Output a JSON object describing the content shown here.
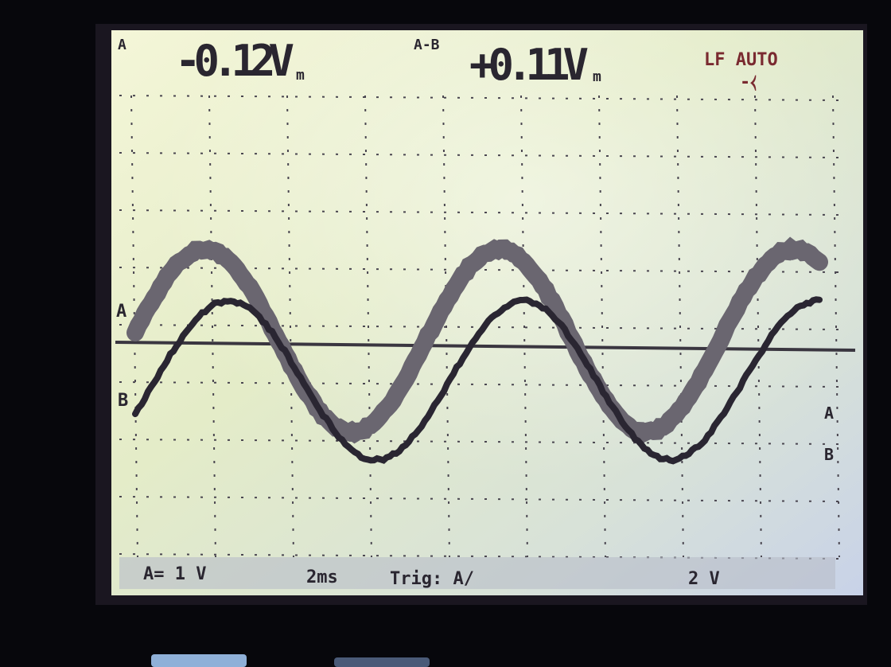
{
  "header": {
    "channel": "A",
    "reading_a": "-0.12V",
    "reading_a_unit": "m",
    "channel_b": "A-B",
    "reading_b": "+0.11V",
    "reading_b_unit": "m",
    "mode": "LF AUTO",
    "trigger_icon": "-⧼"
  },
  "traces": {
    "ground_marker": "A",
    "left_b": "B",
    "right_a": "A",
    "right_b": "B"
  },
  "footer": {
    "scale": "A= 1 V",
    "timebase": "2ms",
    "trigger": "Trig: A/",
    "right": "2 V"
  }
}
